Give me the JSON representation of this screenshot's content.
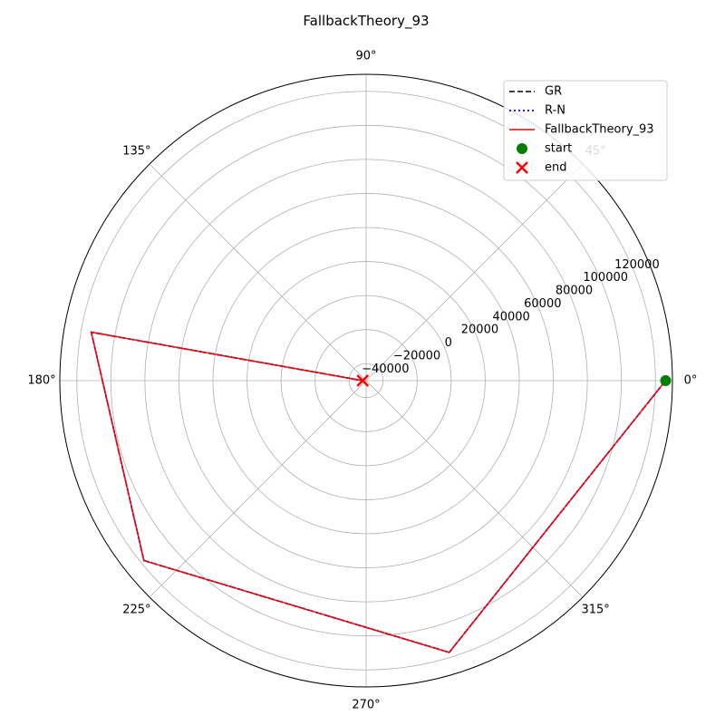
{
  "chart_data": {
    "type": "line",
    "projection": "polar",
    "title": "FallbackTheory_93",
    "theta_unit": "degrees",
    "theta_tick_labels": [
      "0°",
      "45°",
      "90°",
      "135°",
      "180°",
      "225°",
      "270°",
      "315°"
    ],
    "theta_ticks": [
      0,
      45,
      90,
      135,
      180,
      225,
      270,
      315
    ],
    "r_tick_labels": [
      "−40000",
      "−20000",
      "0",
      "20000",
      "40000",
      "60000",
      "80000",
      "100000",
      "120000"
    ],
    "r_ticks": [
      -40000,
      -20000,
      0,
      20000,
      40000,
      60000,
      80000,
      100000,
      120000
    ],
    "rlim": [
      -50000,
      130000
    ],
    "r_label_angle_deg": 22.5,
    "grid": true,
    "legend_placement": "top-right",
    "series": [
      {
        "name": "GR",
        "color": "#000000",
        "linestyle": "dashed",
        "theta": [
          0,
          287,
          219,
          170,
          180
        ],
        "r": [
          126000,
          117000,
          118000,
          114000,
          -48000
        ]
      },
      {
        "name": "R-N",
        "color": "#0000ff",
        "linestyle": "dotted",
        "theta": [
          0,
          287,
          219,
          170,
          180
        ],
        "r": [
          126000,
          117000,
          118000,
          114000,
          -48000
        ]
      },
      {
        "name": "FallbackTheory_93",
        "color": "#ff0000",
        "linestyle": "solid",
        "theta": [
          0,
          287,
          219,
          170,
          180
        ],
        "r": [
          126000,
          117000,
          118000,
          114000,
          -48000
        ]
      }
    ],
    "markers": [
      {
        "name": "start",
        "shape": "circle",
        "color": "#008000",
        "theta": 0,
        "r": 126000
      },
      {
        "name": "end",
        "shape": "x",
        "color": "#ff0000",
        "theta": 180,
        "r": -48000
      }
    ]
  }
}
